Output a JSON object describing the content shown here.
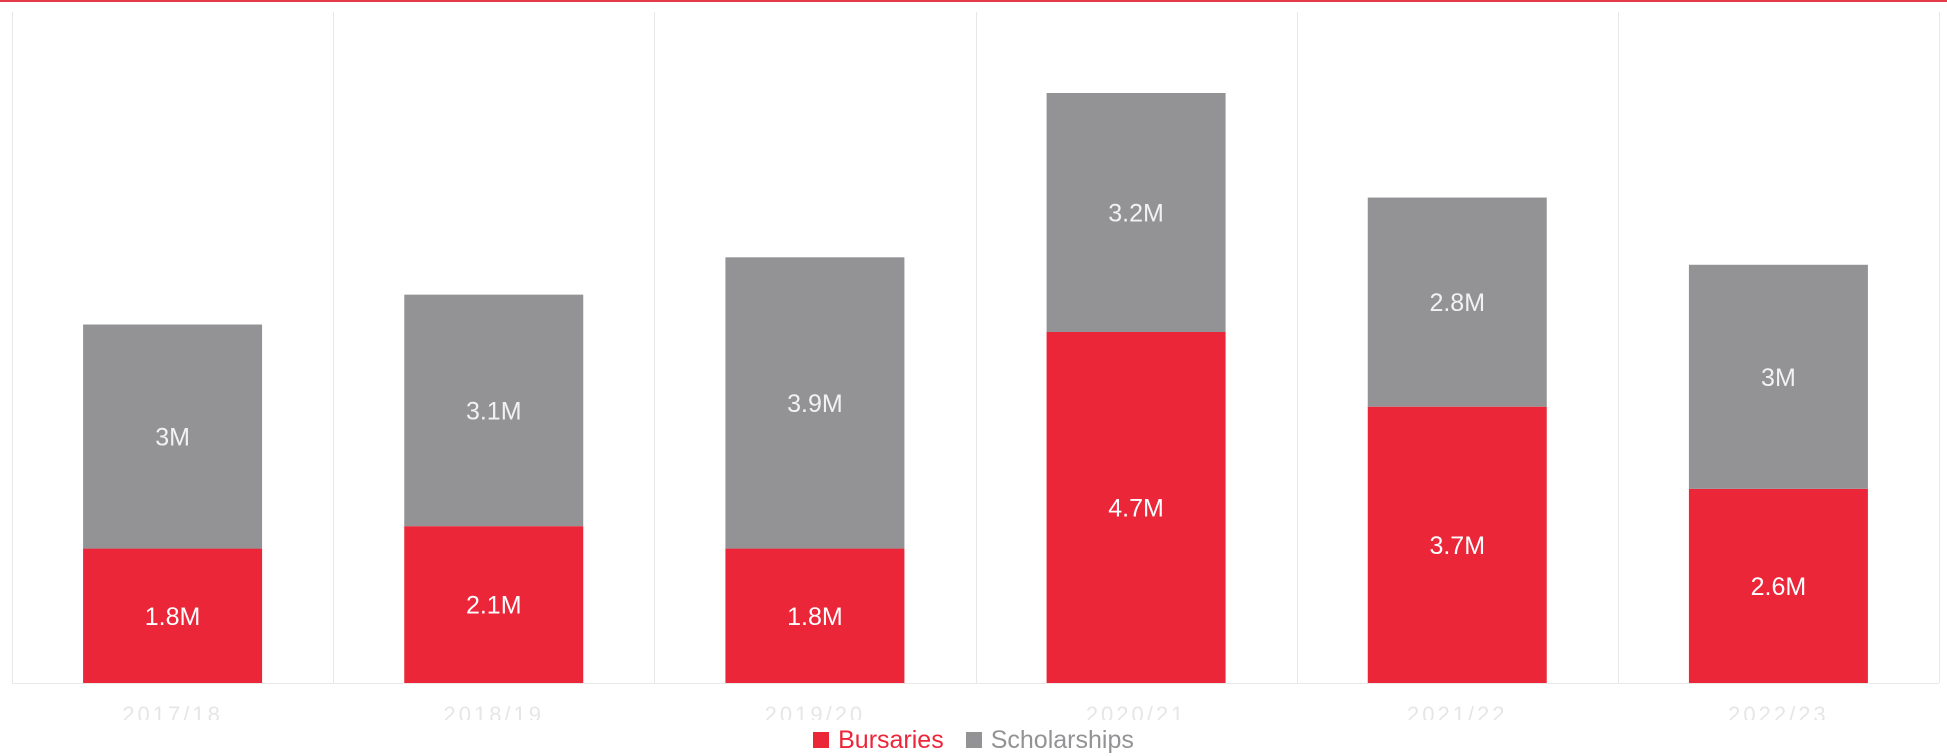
{
  "chart_data": {
    "type": "bar",
    "stacked": true,
    "title": "",
    "xlabel": "",
    "ylabel": "",
    "categories": [
      "2017/18",
      "2018/19",
      "2019/20",
      "2020/21",
      "2021/22",
      "2022/23"
    ],
    "series": [
      {
        "name": "Bursaries",
        "color": "#ec2639",
        "label_color": "#ffffff",
        "values": [
          1.8,
          2.1,
          1.8,
          4.7,
          3.7,
          2.6
        ],
        "labels": [
          "1.8M",
          "2.1M",
          "1.8M",
          "4.7M",
          "3.7M",
          "2.6M"
        ]
      },
      {
        "name": "Scholarships",
        "color": "#939396",
        "label_color": "#f2f2f2",
        "values": [
          3.0,
          3.1,
          3.9,
          3.2,
          2.8,
          3.0
        ],
        "labels": [
          "3M",
          "3.1M",
          "3.9M",
          "3.2M",
          "2.8M",
          "3M"
        ]
      }
    ],
    "ylim": [
      0,
      9
    ],
    "unit": "M",
    "grid": "vertical separators between categories",
    "legend_position": "bottom-center"
  },
  "colors": {
    "accent": "#ec2639",
    "secondary": "#939396",
    "top_rule": "#e53a47",
    "axis_label": "#e6e6e6",
    "gridline": "#e8e8e8"
  }
}
